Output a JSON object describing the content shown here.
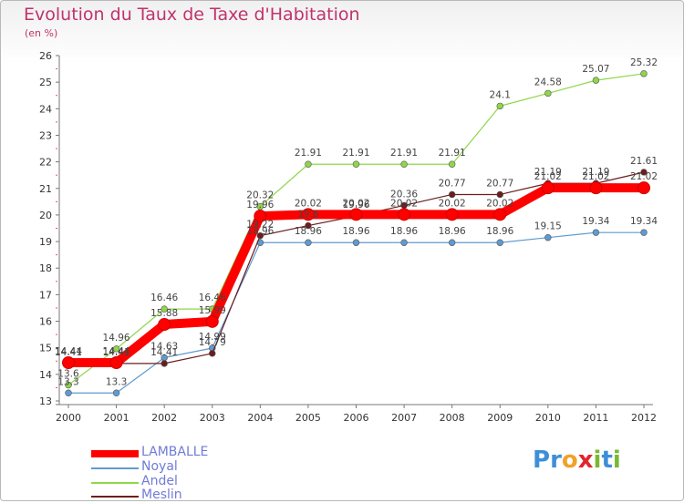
{
  "page": {
    "title": "Evolution du Taux de Taxe d'Habitation",
    "subtitle": "(en %)"
  },
  "logo": {
    "text": "Proxiti",
    "letters": [
      "P",
      "r",
      "o",
      "x",
      "i",
      "t",
      "i"
    ],
    "colors": [
      "#3e8fd8",
      "#3e8fd8",
      "#f2a12a",
      "#e0262c",
      "#7ab833",
      "#3e8fd8",
      "#7ab833"
    ]
  },
  "chart_data": {
    "type": "line",
    "x": [
      "2000",
      "2001",
      "2002",
      "2003",
      "2004",
      "2005",
      "2006",
      "2007",
      "2008",
      "2009",
      "2010",
      "2011",
      "2012"
    ],
    "ylim": [
      13,
      26
    ],
    "yticks": [
      "13",
      "14",
      "15",
      "16",
      "17",
      "18",
      "19",
      "20",
      "21",
      "22",
      "23",
      "24",
      "25",
      "26"
    ],
    "grid": false,
    "legend_position": "bottom-left",
    "series": [
      {
        "name": "LAMBALLE",
        "color": "#ff0000",
        "values": [
          14.44,
          14.44,
          15.88,
          15.99,
          19.96,
          20.02,
          20.02,
          20.02,
          20.02,
          20.02,
          21.02,
          21.02,
          21.02
        ],
        "labels": [
          "14.44",
          "14.44",
          "15.88",
          "15.99",
          "19.96",
          "20.02",
          "20.02",
          "20.02",
          "20.02",
          "20.02",
          "21.02",
          "21.02",
          "21.02"
        ]
      },
      {
        "name": "Noyal",
        "color": "#5f9bd0",
        "values": [
          13.3,
          13.3,
          14.63,
          14.99,
          18.96,
          18.96,
          18.96,
          18.96,
          18.96,
          18.96,
          19.15,
          19.34,
          19.34
        ],
        "labels": [
          "13.3",
          "13.3",
          "14.63",
          "14.99",
          "18.96",
          "18.96",
          "18.96",
          "18.96",
          "18.96",
          "18.96",
          "19.15",
          "19.34",
          "19.34"
        ]
      },
      {
        "name": "Andel",
        "color": "#8fd64a",
        "values": [
          13.6,
          14.96,
          16.46,
          16.46,
          20.32,
          21.91,
          21.91,
          21.91,
          21.91,
          24.1,
          24.58,
          25.07,
          25.32
        ],
        "labels": [
          "13.6",
          "14.96",
          "16.46",
          "16.46",
          "20.32",
          "21.91",
          "21.91",
          "21.91",
          "21.91",
          "24.1",
          "24.58",
          "25.07",
          "25.32"
        ]
      },
      {
        "name": "Meslin",
        "color": "#6b1e1e",
        "values": [
          14.41,
          14.41,
          14.41,
          14.79,
          19.22,
          19.6,
          19.96,
          20.36,
          20.77,
          20.77,
          21.19,
          21.19,
          21.61
        ],
        "labels": [
          "14.41",
          "14.41",
          "14.41",
          "14.79",
          "19.22",
          "19.6",
          "19.96",
          "20.36",
          "20.77",
          "20.77",
          "21.19",
          "21.19",
          "21.61"
        ]
      }
    ]
  }
}
